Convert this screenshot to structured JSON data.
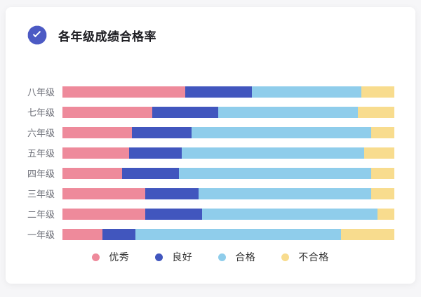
{
  "card": {
    "title": "各年级成绩合格率",
    "badge": {
      "icon": "seal-check",
      "color": "#4C5AC4",
      "check_color": "#ffffff"
    }
  },
  "chart_data": {
    "type": "bar",
    "orientation": "horizontal",
    "stacked": true,
    "unit": "percent",
    "title": "各年级成绩合格率",
    "xlim": [
      0,
      100
    ],
    "grid": false,
    "legend_position": "bottom",
    "categories": [
      "八年级",
      "七年级",
      "六年级",
      "五年级",
      "四年级",
      "三年级",
      "二年级",
      "一年级"
    ],
    "series": [
      {
        "key": "excellent",
        "name": "优秀",
        "color": "#EE8A9B",
        "values": [
          37,
          27,
          21,
          20,
          18,
          25,
          25,
          12
        ]
      },
      {
        "key": "good",
        "name": "良好",
        "color": "#4156BE",
        "values": [
          20,
          20,
          18,
          16,
          17,
          16,
          17,
          10
        ]
      },
      {
        "key": "pass",
        "name": "合格",
        "color": "#8FCDEB",
        "values": [
          33,
          42,
          54,
          55,
          58,
          52,
          53,
          62
        ]
      },
      {
        "key": "fail",
        "name": "不合格",
        "color": "#F8DC8E",
        "values": [
          10,
          11,
          7,
          9,
          7,
          7,
          5,
          16
        ]
      }
    ]
  }
}
